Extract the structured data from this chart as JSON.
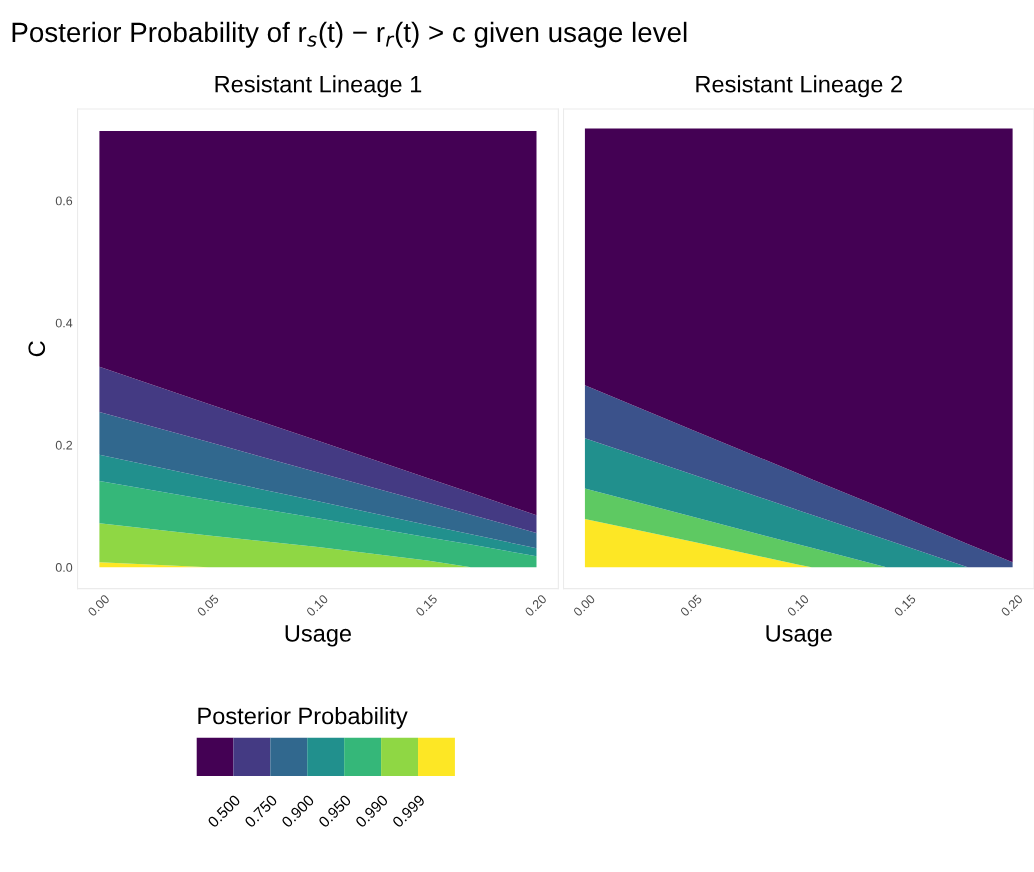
{
  "chart_data": [
    {
      "type": "area",
      "stacked": true,
      "title": "Resistant Lineage 1",
      "xlabel": "Usage",
      "ylabel": "C",
      "annotations": [
        "Posterior Probability of r$_{s}$(t) − r$_{r}$(t) > c given usage level"
      ],
      "x": [
        0,
        0.05,
        0.1,
        0.15,
        0.17,
        0.2
      ],
      "series": [
        {
          "color": "#fde725",
          "values": [
            0.008,
            0,
            0,
            0,
            0,
            0
          ]
        },
        {
          "color": "#8fd744",
          "values": [
            0.064,
            0.052,
            0.033,
            0.011,
            0,
            0
          ]
        },
        {
          "color": "#35b779",
          "values": [
            0.069,
            0.058,
            0.047,
            0.038,
            0.037,
            0.018
          ]
        },
        {
          "color": "#21908d",
          "values": [
            0.043,
            0.036,
            0.028,
            0.02,
            0.017,
            0.013
          ]
        },
        {
          "color": "#31688e",
          "values": [
            0.07,
            0.059,
            0.047,
            0.037,
            0.032,
            0.025
          ]
        },
        {
          "color": "#443a83",
          "values": [
            0.074,
            0.062,
            0.052,
            0.04,
            0.036,
            0.029
          ]
        },
        {
          "color": "#440154",
          "values": [
            0.386,
            0.447,
            0.507,
            0.568,
            0.592,
            0.629
          ]
        }
      ],
      "xlim": [
        -0.01,
        0.21
      ],
      "ylim": [
        -0.035,
        0.75
      ],
      "xticks": [
        {
          "value": 0,
          "label": "0.00"
        },
        {
          "value": 0.05,
          "label": "0.05"
        },
        {
          "value": 0.1,
          "label": "0.10"
        },
        {
          "value": 0.15,
          "label": "0.15"
        },
        {
          "value": 0.2,
          "label": "0.20"
        }
      ],
      "yticks": [
        {
          "value": 0,
          "label": "0.0"
        },
        {
          "value": 0.2,
          "label": "0.2"
        },
        {
          "value": 0.4,
          "label": "0.4"
        },
        {
          "value": 0.6,
          "label": "0.6"
        }
      ],
      "grid": false
    },
    {
      "type": "area",
      "stacked": true,
      "title": "Resistant Lineage 2",
      "xlabel": "Usage",
      "x": [
        0,
        0.05,
        0.1,
        0.106,
        0.141,
        0.179,
        0.2
      ],
      "series": [
        {
          "color": "#fde725",
          "values": [
            0.079,
            0.042,
            0.004,
            0,
            0,
            0,
            0
          ]
        },
        {
          "color": "#5ec962",
          "values": [
            0.05,
            0.041,
            0.033,
            0.032,
            0,
            0,
            0
          ]
        },
        {
          "color": "#21908d",
          "values": [
            0.082,
            0.069,
            0.056,
            0.054,
            0.045,
            0,
            0
          ]
        },
        {
          "color": "#3b528b",
          "values": [
            0.087,
            0.073,
            0.06,
            0.058,
            0.049,
            0.038,
            0.008
          ]
        },
        {
          "color": "#440154",
          "values": [
            0.42,
            0.493,
            0.565,
            0.574,
            0.624,
            0.68,
            0.71
          ]
        }
      ],
      "xlim": [
        -0.01,
        0.21
      ],
      "ylim": [
        -0.035,
        0.75
      ],
      "xticks": [
        {
          "value": 0,
          "label": "0.00"
        },
        {
          "value": 0.05,
          "label": "0.05"
        },
        {
          "value": 0.1,
          "label": "0.10"
        },
        {
          "value": 0.15,
          "label": "0.15"
        },
        {
          "value": 0.2,
          "label": "0.20"
        }
      ],
      "yticks": [
        {
          "value": 0,
          "label": null
        },
        {
          "value": 0.2,
          "label": null
        },
        {
          "value": 0.4,
          "label": null
        },
        {
          "value": 0.6,
          "label": null
        }
      ],
      "tick_labels": "x",
      "grid": false
    },
    {
      "type": "other",
      "title": "Posterior Probability",
      "colors": [
        "#440154",
        "#443a83",
        "#31688e",
        "#21908d",
        "#35b779",
        "#8fd744",
        "#fde725"
      ],
      "annotations": [
        "0.500",
        "0.750",
        "0.900",
        "0.950",
        "0.990",
        "0.999"
      ]
    }
  ]
}
